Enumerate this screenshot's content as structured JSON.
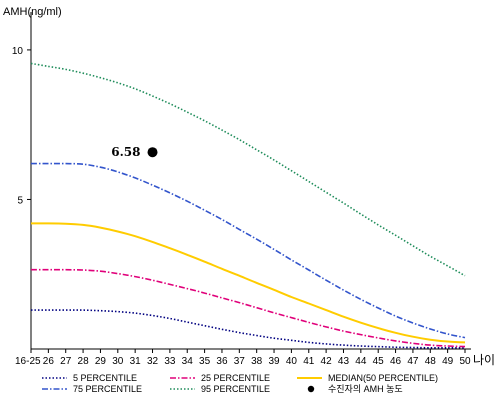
{
  "chart_data": {
    "type": "line",
    "ylabel": "AMH(ng/ml)",
    "xlabel": "나이",
    "ylim": [
      0,
      11
    ],
    "y_ticks": [
      5,
      10
    ],
    "categories": [
      "16-25",
      "26",
      "27",
      "28",
      "29",
      "30",
      "31",
      "32",
      "33",
      "34",
      "35",
      "36",
      "37",
      "38",
      "39",
      "40",
      "41",
      "42",
      "43",
      "44",
      "45",
      "46",
      "47",
      "48",
      "49",
      "50"
    ],
    "series": [
      {
        "name": "5 PERCENTILE",
        "color": "#000080",
        "dash": "dot",
        "values": [
          1.3,
          1.3,
          1.3,
          1.3,
          1.28,
          1.25,
          1.2,
          1.12,
          1.02,
          0.9,
          0.78,
          0.66,
          0.55,
          0.45,
          0.36,
          0.29,
          0.22,
          0.17,
          0.13,
          0.1,
          0.08,
          0.06,
          0.05,
          0.04,
          0.04,
          0.04
        ]
      },
      {
        "name": "25 PERCENTILE",
        "color": "#e0007a",
        "dash": "dashdot",
        "values": [
          2.65,
          2.65,
          2.65,
          2.64,
          2.6,
          2.52,
          2.42,
          2.3,
          2.16,
          2.02,
          1.87,
          1.71,
          1.55,
          1.38,
          1.21,
          1.05,
          0.89,
          0.74,
          0.6,
          0.48,
          0.37,
          0.27,
          0.19,
          0.13,
          0.1,
          0.08
        ]
      },
      {
        "name": "MEDIAN(50 PERCENTILE)",
        "color": "#ffcc00",
        "dash": "solid",
        "values": [
          4.2,
          4.2,
          4.19,
          4.15,
          4.06,
          3.93,
          3.77,
          3.58,
          3.37,
          3.15,
          2.92,
          2.68,
          2.45,
          2.21,
          1.98,
          1.74,
          1.52,
          1.3,
          1.08,
          0.88,
          0.7,
          0.54,
          0.41,
          0.31,
          0.25,
          0.22
        ]
      },
      {
        "name": "75 PERCENTILE",
        "color": "#3355cc",
        "dash": "dashdot",
        "values": [
          6.2,
          6.2,
          6.2,
          6.18,
          6.08,
          5.92,
          5.72,
          5.48,
          5.22,
          4.94,
          4.64,
          4.33,
          4.0,
          3.67,
          3.33,
          2.98,
          2.64,
          2.3,
          1.97,
          1.66,
          1.37,
          1.1,
          0.87,
          0.67,
          0.5,
          0.38
        ]
      },
      {
        "name": "95 PERCENTILE",
        "color": "#1e8c5a",
        "dash": "dot",
        "values": [
          9.55,
          9.45,
          9.35,
          9.22,
          9.07,
          8.9,
          8.7,
          8.46,
          8.2,
          7.92,
          7.63,
          7.32,
          7.0,
          6.66,
          6.32,
          5.96,
          5.6,
          5.24,
          4.88,
          4.51,
          4.15,
          3.8,
          3.45,
          3.1,
          2.78,
          2.45
        ]
      }
    ],
    "annotation": {
      "label": "6.58",
      "x": "32",
      "y": 6.58
    },
    "legend": {
      "position": "bottom",
      "marker_label": "수진자의 AMH 농도"
    }
  }
}
